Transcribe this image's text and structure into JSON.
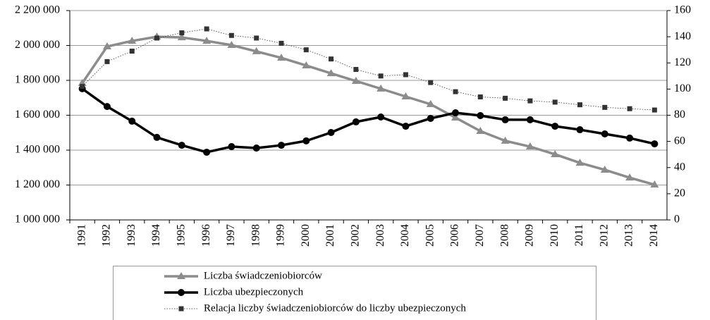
{
  "chart_data": {
    "type": "line",
    "categories": [
      "1991",
      "1992",
      "1993",
      "1994",
      "1995",
      "1996",
      "1997",
      "1998",
      "1999",
      "2000",
      "2001",
      "2002",
      "2003",
      "2004",
      "2005",
      "2006",
      "2007",
      "2008",
      "2009",
      "2010",
      "2011",
      "2012",
      "2013",
      "2014"
    ],
    "series": [
      {
        "name": "Liczba świadczeniobiorców",
        "color": "#8c8c8c",
        "marker": "triangle",
        "line_style": "solid",
        "values": [
          1784000,
          1994000,
          2026000,
          2050000,
          2046000,
          2026000,
          2002000,
          1966000,
          1929000,
          1885000,
          1840000,
          1796000,
          1752000,
          1707000,
          1663000,
          1586000,
          1509000,
          1453000,
          1420000,
          1376000,
          1327000,
          1287000,
          1242000,
          1202000
        ]
      },
      {
        "name": "Liczba ubezpieczonych",
        "color": "#000000",
        "marker": "circle",
        "line_style": "solid",
        "values": [
          1752000,
          1650000,
          1566000,
          1473000,
          1428000,
          1388000,
          1420000,
          1412000,
          1428000,
          1453000,
          1501000,
          1562000,
          1590000,
          1537000,
          1582000,
          1614000,
          1598000,
          1574000,
          1574000,
          1537000,
          1517000,
          1493000,
          1469000,
          1436000
        ]
      },
      {
        "name": "Relacja liczby świadczeniobiorców do liczby ubezpieczonych",
        "color": "#333333",
        "marker": "square",
        "line_style": "dotted",
        "axis": "y2",
        "values": [
          102,
          121,
          129,
          139,
          143,
          146,
          141,
          139,
          135,
          130,
          123,
          115,
          110,
          111,
          105,
          98,
          94,
          93,
          91,
          90,
          88,
          86,
          85,
          84
        ]
      }
    ],
    "ylim": [
      1000000,
      2200000
    ],
    "yticks": [
      {
        "value": 1000000,
        "label": "1 000 000"
      },
      {
        "value": 1200000,
        "label": "1 200 000"
      },
      {
        "value": 1400000,
        "label": "1 400 000"
      },
      {
        "value": 1600000,
        "label": "1 600 000"
      },
      {
        "value": 1800000,
        "label": "1 800 000"
      },
      {
        "value": 2000000,
        "label": "2 000 000"
      },
      {
        "value": 2200000,
        "label": "2 200 000"
      }
    ],
    "y2lim": [
      0,
      160
    ],
    "y2ticks": [
      0,
      20,
      40,
      60,
      80,
      100,
      120,
      140,
      160
    ],
    "grid": true,
    "legend": "bottom"
  }
}
